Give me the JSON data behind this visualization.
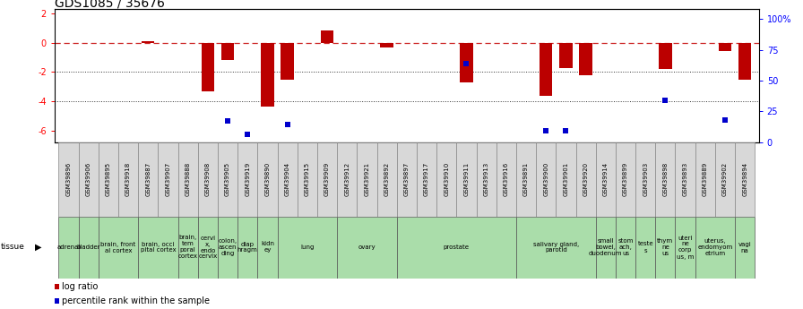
{
  "title": "GDS1085 / 35676",
  "samples": [
    "GSM39896",
    "GSM39906",
    "GSM39895",
    "GSM39918",
    "GSM39887",
    "GSM39907",
    "GSM39888",
    "GSM39908",
    "GSM39905",
    "GSM39919",
    "GSM39890",
    "GSM39904",
    "GSM39915",
    "GSM39909",
    "GSM39912",
    "GSM39921",
    "GSM39892",
    "GSM39897",
    "GSM39917",
    "GSM39910",
    "GSM39911",
    "GSM39913",
    "GSM39916",
    "GSM39891",
    "GSM39900",
    "GSM39901",
    "GSM39920",
    "GSM39914",
    "GSM39899",
    "GSM39903",
    "GSM39898",
    "GSM39893",
    "GSM39889",
    "GSM39902",
    "GSM39894"
  ],
  "log_ratio": [
    0.0,
    0.0,
    0.0,
    0.0,
    0.12,
    0.0,
    0.0,
    -3.3,
    -1.2,
    0.0,
    -4.35,
    -2.5,
    0.0,
    0.85,
    0.0,
    0.0,
    -0.3,
    0.0,
    0.0,
    0.0,
    -2.7,
    0.0,
    0.0,
    0.0,
    -3.6,
    -1.75,
    -2.2,
    0.0,
    0.0,
    0.0,
    -1.8,
    0.0,
    0.0,
    -0.55,
    -2.5
  ],
  "percentile": [
    null,
    null,
    null,
    null,
    null,
    null,
    null,
    null,
    17,
    6,
    null,
    14,
    null,
    null,
    null,
    null,
    null,
    null,
    null,
    null,
    64,
    null,
    null,
    null,
    9,
    9,
    null,
    null,
    null,
    null,
    34,
    null,
    null,
    18,
    null
  ],
  "tissue_groups": [
    {
      "label": "adrenal",
      "start": 0,
      "end": 1
    },
    {
      "label": "bladder",
      "start": 1,
      "end": 2
    },
    {
      "label": "brain, front\nal cortex",
      "start": 2,
      "end": 4
    },
    {
      "label": "brain, occi\npital cortex",
      "start": 4,
      "end": 6
    },
    {
      "label": "brain,\ntem\nporal\ncortex",
      "start": 6,
      "end": 7
    },
    {
      "label": "cervi\nx,\nendo\ncervix",
      "start": 7,
      "end": 8
    },
    {
      "label": "colon,\nascen\nding",
      "start": 8,
      "end": 9
    },
    {
      "label": "diap\nhragm",
      "start": 9,
      "end": 10
    },
    {
      "label": "kidn\ney",
      "start": 10,
      "end": 11
    },
    {
      "label": "lung",
      "start": 11,
      "end": 14
    },
    {
      "label": "ovary",
      "start": 14,
      "end": 17
    },
    {
      "label": "prostate",
      "start": 17,
      "end": 23
    },
    {
      "label": "salivary gland,\nparotid",
      "start": 23,
      "end": 27
    },
    {
      "label": "small\nbowel,\nduodenum",
      "start": 27,
      "end": 28
    },
    {
      "label": "stom\nach,\nus",
      "start": 28,
      "end": 29
    },
    {
      "label": "teste\ns",
      "start": 29,
      "end": 30
    },
    {
      "label": "thym\nne\nus",
      "start": 30,
      "end": 31
    },
    {
      "label": "uteri\nne\ncorp\nus, m",
      "start": 31,
      "end": 32
    },
    {
      "label": "uterus,\nendomyom\netrium",
      "start": 32,
      "end": 34
    },
    {
      "label": "vagi\nna",
      "start": 34,
      "end": 35
    }
  ],
  "left_ylim": [
    -6.8,
    2.3
  ],
  "left_yticks": [
    -6,
    -4,
    -2,
    0,
    2
  ],
  "right_yticks": [
    0,
    25,
    50,
    75,
    100
  ],
  "right_yticklabels": [
    "0",
    "25",
    "50",
    "75",
    "100%"
  ],
  "bar_color": "#bb0000",
  "dot_color": "#0000cc",
  "dashed_color": "#cc2222",
  "light_green": "#aaddaa",
  "sample_box_color": "#d8d8d8",
  "title_fontsize": 10,
  "tick_fontsize": 7,
  "sample_fontsize": 5.0,
  "tissue_fontsize": 5.0,
  "legend_fontsize": 7
}
